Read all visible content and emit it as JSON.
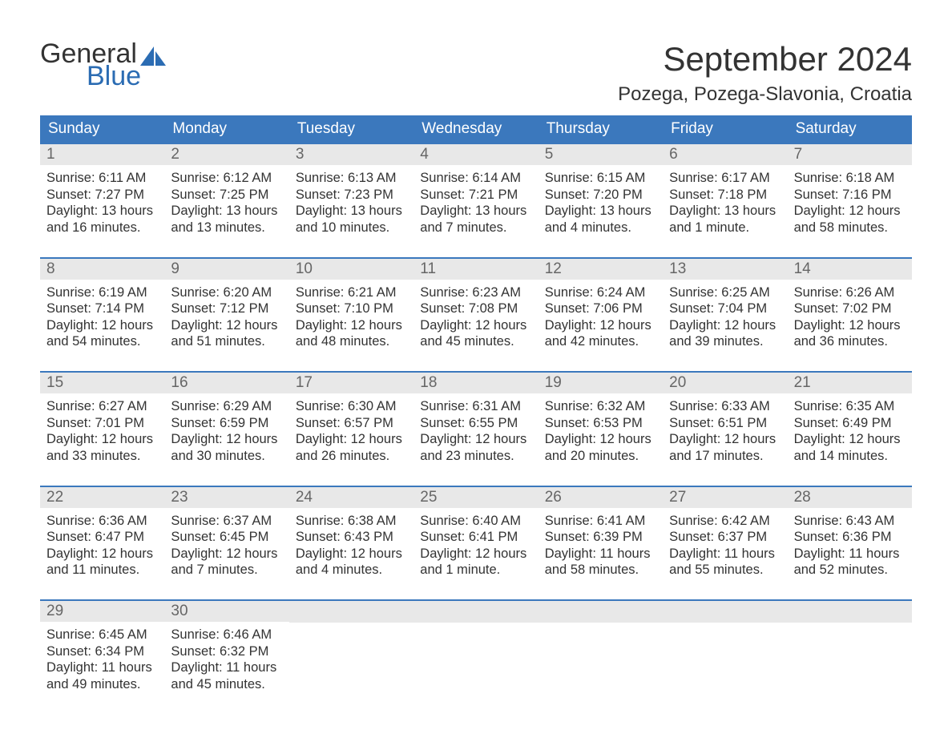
{
  "logo": {
    "word1": "General",
    "word2": "Blue",
    "text_color": "#333333",
    "accent_color": "#2b6cb3"
  },
  "title": "September 2024",
  "location": "Pozega, Pozega-Slavonia, Croatia",
  "colors": {
    "header_bg": "#3b78bd",
    "header_text": "#ffffff",
    "daynum_bg": "#e8e8e8",
    "daynum_text": "#666666",
    "body_text": "#333333",
    "border": "#3b78bd",
    "page_bg": "#ffffff"
  },
  "typography": {
    "title_fontsize": 42,
    "location_fontsize": 24,
    "header_fontsize": 19,
    "daynum_fontsize": 19,
    "body_fontsize": 16.5,
    "logo_fontsize": 34
  },
  "day_headers": [
    "Sunday",
    "Monday",
    "Tuesday",
    "Wednesday",
    "Thursday",
    "Friday",
    "Saturday"
  ],
  "weeks": [
    [
      {
        "n": "1",
        "sr": "Sunrise: 6:11 AM",
        "ss": "Sunset: 7:27 PM",
        "d1": "Daylight: 13 hours",
        "d2": "and 16 minutes."
      },
      {
        "n": "2",
        "sr": "Sunrise: 6:12 AM",
        "ss": "Sunset: 7:25 PM",
        "d1": "Daylight: 13 hours",
        "d2": "and 13 minutes."
      },
      {
        "n": "3",
        "sr": "Sunrise: 6:13 AM",
        "ss": "Sunset: 7:23 PM",
        "d1": "Daylight: 13 hours",
        "d2": "and 10 minutes."
      },
      {
        "n": "4",
        "sr": "Sunrise: 6:14 AM",
        "ss": "Sunset: 7:21 PM",
        "d1": "Daylight: 13 hours",
        "d2": "and 7 minutes."
      },
      {
        "n": "5",
        "sr": "Sunrise: 6:15 AM",
        "ss": "Sunset: 7:20 PM",
        "d1": "Daylight: 13 hours",
        "d2": "and 4 minutes."
      },
      {
        "n": "6",
        "sr": "Sunrise: 6:17 AM",
        "ss": "Sunset: 7:18 PM",
        "d1": "Daylight: 13 hours",
        "d2": "and 1 minute."
      },
      {
        "n": "7",
        "sr": "Sunrise: 6:18 AM",
        "ss": "Sunset: 7:16 PM",
        "d1": "Daylight: 12 hours",
        "d2": "and 58 minutes."
      }
    ],
    [
      {
        "n": "8",
        "sr": "Sunrise: 6:19 AM",
        "ss": "Sunset: 7:14 PM",
        "d1": "Daylight: 12 hours",
        "d2": "and 54 minutes."
      },
      {
        "n": "9",
        "sr": "Sunrise: 6:20 AM",
        "ss": "Sunset: 7:12 PM",
        "d1": "Daylight: 12 hours",
        "d2": "and 51 minutes."
      },
      {
        "n": "10",
        "sr": "Sunrise: 6:21 AM",
        "ss": "Sunset: 7:10 PM",
        "d1": "Daylight: 12 hours",
        "d2": "and 48 minutes."
      },
      {
        "n": "11",
        "sr": "Sunrise: 6:23 AM",
        "ss": "Sunset: 7:08 PM",
        "d1": "Daylight: 12 hours",
        "d2": "and 45 minutes."
      },
      {
        "n": "12",
        "sr": "Sunrise: 6:24 AM",
        "ss": "Sunset: 7:06 PM",
        "d1": "Daylight: 12 hours",
        "d2": "and 42 minutes."
      },
      {
        "n": "13",
        "sr": "Sunrise: 6:25 AM",
        "ss": "Sunset: 7:04 PM",
        "d1": "Daylight: 12 hours",
        "d2": "and 39 minutes."
      },
      {
        "n": "14",
        "sr": "Sunrise: 6:26 AM",
        "ss": "Sunset: 7:02 PM",
        "d1": "Daylight: 12 hours",
        "d2": "and 36 minutes."
      }
    ],
    [
      {
        "n": "15",
        "sr": "Sunrise: 6:27 AM",
        "ss": "Sunset: 7:01 PM",
        "d1": "Daylight: 12 hours",
        "d2": "and 33 minutes."
      },
      {
        "n": "16",
        "sr": "Sunrise: 6:29 AM",
        "ss": "Sunset: 6:59 PM",
        "d1": "Daylight: 12 hours",
        "d2": "and 30 minutes."
      },
      {
        "n": "17",
        "sr": "Sunrise: 6:30 AM",
        "ss": "Sunset: 6:57 PM",
        "d1": "Daylight: 12 hours",
        "d2": "and 26 minutes."
      },
      {
        "n": "18",
        "sr": "Sunrise: 6:31 AM",
        "ss": "Sunset: 6:55 PM",
        "d1": "Daylight: 12 hours",
        "d2": "and 23 minutes."
      },
      {
        "n": "19",
        "sr": "Sunrise: 6:32 AM",
        "ss": "Sunset: 6:53 PM",
        "d1": "Daylight: 12 hours",
        "d2": "and 20 minutes."
      },
      {
        "n": "20",
        "sr": "Sunrise: 6:33 AM",
        "ss": "Sunset: 6:51 PM",
        "d1": "Daylight: 12 hours",
        "d2": "and 17 minutes."
      },
      {
        "n": "21",
        "sr": "Sunrise: 6:35 AM",
        "ss": "Sunset: 6:49 PM",
        "d1": "Daylight: 12 hours",
        "d2": "and 14 minutes."
      }
    ],
    [
      {
        "n": "22",
        "sr": "Sunrise: 6:36 AM",
        "ss": "Sunset: 6:47 PM",
        "d1": "Daylight: 12 hours",
        "d2": "and 11 minutes."
      },
      {
        "n": "23",
        "sr": "Sunrise: 6:37 AM",
        "ss": "Sunset: 6:45 PM",
        "d1": "Daylight: 12 hours",
        "d2": "and 7 minutes."
      },
      {
        "n": "24",
        "sr": "Sunrise: 6:38 AM",
        "ss": "Sunset: 6:43 PM",
        "d1": "Daylight: 12 hours",
        "d2": "and 4 minutes."
      },
      {
        "n": "25",
        "sr": "Sunrise: 6:40 AM",
        "ss": "Sunset: 6:41 PM",
        "d1": "Daylight: 12 hours",
        "d2": "and 1 minute."
      },
      {
        "n": "26",
        "sr": "Sunrise: 6:41 AM",
        "ss": "Sunset: 6:39 PM",
        "d1": "Daylight: 11 hours",
        "d2": "and 58 minutes."
      },
      {
        "n": "27",
        "sr": "Sunrise: 6:42 AM",
        "ss": "Sunset: 6:37 PM",
        "d1": "Daylight: 11 hours",
        "d2": "and 55 minutes."
      },
      {
        "n": "28",
        "sr": "Sunrise: 6:43 AM",
        "ss": "Sunset: 6:36 PM",
        "d1": "Daylight: 11 hours",
        "d2": "and 52 minutes."
      }
    ],
    [
      {
        "n": "29",
        "sr": "Sunrise: 6:45 AM",
        "ss": "Sunset: 6:34 PM",
        "d1": "Daylight: 11 hours",
        "d2": "and 49 minutes."
      },
      {
        "n": "30",
        "sr": "Sunrise: 6:46 AM",
        "ss": "Sunset: 6:32 PM",
        "d1": "Daylight: 11 hours",
        "d2": "and 45 minutes."
      },
      {
        "empty": true
      },
      {
        "empty": true
      },
      {
        "empty": true
      },
      {
        "empty": true
      },
      {
        "empty": true
      }
    ]
  ]
}
